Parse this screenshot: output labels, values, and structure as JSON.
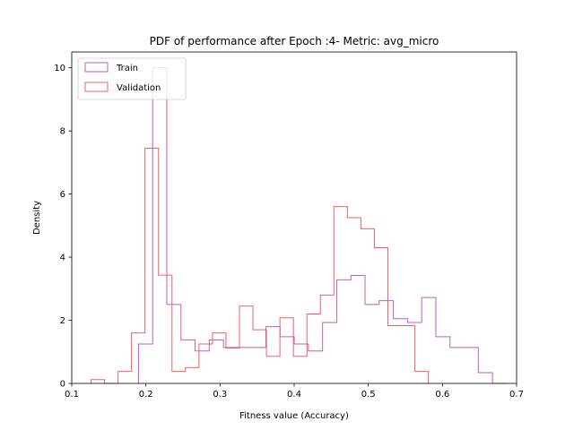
{
  "chart_data": {
    "type": "histogram",
    "title": "PDF of performance after Epoch :4- Metric: avg_micro",
    "xlabel": "Fitness value (Accuracy)",
    "ylabel": "Density",
    "xlim": [
      0.1,
      0.7
    ],
    "ylim": [
      0,
      10.5
    ],
    "xticks": [
      "0.1",
      "0.2",
      "0.3",
      "0.4",
      "0.5",
      "0.6",
      "0.7"
    ],
    "xtick_values": [
      0.1,
      0.2,
      0.3,
      0.4,
      0.5,
      0.6,
      0.7
    ],
    "yticks": [
      "0",
      "2",
      "4",
      "6",
      "8",
      "10"
    ],
    "ytick_values": [
      0,
      2,
      4,
      6,
      8,
      10
    ],
    "grid": false,
    "legend_position": "top-left",
    "series": [
      {
        "name": "Train",
        "color": "#bf5fc4",
        "edges": [
          0.19,
          0.2091,
          0.2282,
          0.2473,
          0.2664,
          0.2855,
          0.3046,
          0.3237,
          0.3428,
          0.3619,
          0.381,
          0.4001,
          0.4192,
          0.4383,
          0.4574,
          0.4765,
          0.4956,
          0.5147,
          0.5338,
          0.5529,
          0.572,
          0.5911,
          0.6102,
          0.6293,
          0.6484,
          0.6675,
          0.6866
        ],
        "densities": [
          1.25,
          10.0,
          2.5,
          1.38,
          1.03,
          1.38,
          1.14,
          1.14,
          1.14,
          1.8,
          1.48,
          1.25,
          1.03,
          1.93,
          3.28,
          3.42,
          2.5,
          2.62,
          2.05,
          1.93,
          2.72,
          1.48,
          1.14,
          1.14,
          0.34,
          0.0
        ]
      },
      {
        "name": "Validation",
        "color": "#f06060",
        "edges": [
          0.126,
          0.1442,
          0.1624,
          0.1806,
          0.1988,
          0.217,
          0.2352,
          0.2534,
          0.2716,
          0.2898,
          0.308,
          0.3262,
          0.3444,
          0.3626,
          0.3808,
          0.399,
          0.4172,
          0.4354,
          0.4536,
          0.4718,
          0.49,
          0.5082,
          0.5264,
          0.5446,
          0.5628,
          0.581
        ],
        "densities": [
          0.12,
          0.0,
          0.38,
          1.6,
          7.45,
          3.43,
          0.38,
          0.5,
          1.25,
          1.6,
          1.12,
          2.45,
          1.7,
          0.86,
          2.08,
          0.86,
          2.2,
          2.8,
          5.6,
          5.25,
          4.9,
          4.3,
          1.83,
          1.83,
          0.38
        ]
      }
    ]
  }
}
